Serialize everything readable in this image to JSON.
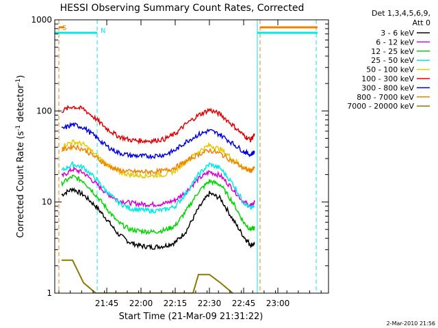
{
  "chart_data": {
    "type": "line",
    "title": "HESSI Observing Summary Count Rates, Corrected",
    "xlabel": "Start Time (21-Mar-09 21:31:22)",
    "ylabel_main": "Corrected Count Rate (s",
    "ylabel_sup1": "-1",
    "ylabel_mid": " detector",
    "ylabel_sup2": "-1",
    "ylabel_end": ")",
    "yscale": "log",
    "ylim": [
      1,
      1000
    ],
    "xlim_minutes": [
      21.37,
      23.37
    ],
    "x_tick_labels": [
      {
        "label": "21:45",
        "minutes": 21.75
      },
      {
        "label": "22:00",
        "minutes": 22.0
      },
      {
        "label": "22:15",
        "minutes": 22.25
      },
      {
        "label": "22:30",
        "minutes": 22.5
      },
      {
        "label": "22:45",
        "minutes": 22.75
      },
      {
        "label": "23:00",
        "minutes": 23.0
      }
    ],
    "y_tick_labels": [
      {
        "label": "1",
        "value": 1
      },
      {
        "label": "10",
        "value": 10
      },
      {
        "label": "100",
        "value": 100
      },
      {
        "label": "1000",
        "value": 1000
      }
    ],
    "legend_header": [
      "Det 1,3,4,5,6,9,",
      "Att 0"
    ],
    "legend_placement": "right",
    "series": [
      {
        "name": "3 - 6 keV",
        "color": "#000000",
        "values": [
          [
            21.42,
            12
          ],
          [
            21.5,
            14
          ],
          [
            21.58,
            12
          ],
          [
            21.67,
            9
          ],
          [
            21.75,
            6.5
          ],
          [
            21.83,
            4.5
          ],
          [
            21.92,
            3.6
          ],
          [
            22.0,
            3.3
          ],
          [
            22.08,
            3.2
          ],
          [
            22.17,
            3.3
          ],
          [
            22.25,
            3.6
          ],
          [
            22.33,
            4.8
          ],
          [
            22.42,
            8.5
          ],
          [
            22.5,
            12.5
          ],
          [
            22.58,
            11
          ],
          [
            22.67,
            6.5
          ],
          [
            22.75,
            4.2
          ],
          [
            22.8,
            3.4
          ],
          [
            22.83,
            3.5
          ]
        ]
      },
      {
        "name": "6 - 12 keV",
        "color": "#d400d4",
        "values": [
          [
            21.42,
            19
          ],
          [
            21.5,
            23
          ],
          [
            21.58,
            21
          ],
          [
            21.67,
            16
          ],
          [
            21.75,
            12.5
          ],
          [
            21.83,
            10.5
          ],
          [
            21.92,
            9.8
          ],
          [
            22.0,
            9.5
          ],
          [
            22.08,
            9.4
          ],
          [
            22.17,
            9.6
          ],
          [
            22.25,
            10.5
          ],
          [
            22.33,
            13
          ],
          [
            22.42,
            18
          ],
          [
            22.5,
            21.5
          ],
          [
            22.58,
            19.5
          ],
          [
            22.67,
            14
          ],
          [
            22.75,
            10
          ],
          [
            22.8,
            9
          ],
          [
            22.83,
            10
          ]
        ]
      },
      {
        "name": "12 - 25 keV",
        "color": "#00d400",
        "values": [
          [
            21.42,
            16
          ],
          [
            21.5,
            19
          ],
          [
            21.58,
            17
          ],
          [
            21.67,
            12
          ],
          [
            21.75,
            8.5
          ],
          [
            21.83,
            6
          ],
          [
            21.92,
            5
          ],
          [
            22.0,
            4.8
          ],
          [
            22.08,
            4.7
          ],
          [
            22.17,
            4.9
          ],
          [
            22.25,
            5.5
          ],
          [
            22.33,
            8
          ],
          [
            22.42,
            13
          ],
          [
            22.5,
            17
          ],
          [
            22.58,
            15.5
          ],
          [
            22.67,
            10
          ],
          [
            22.75,
            6
          ],
          [
            22.8,
            5
          ],
          [
            22.83,
            5.2
          ]
        ]
      },
      {
        "name": "25 - 50 keV",
        "color": "#00e8e8",
        "values": [
          [
            21.42,
            22
          ],
          [
            21.5,
            26
          ],
          [
            21.58,
            24
          ],
          [
            21.67,
            18
          ],
          [
            21.75,
            13
          ],
          [
            21.83,
            10
          ],
          [
            21.92,
            8.5
          ],
          [
            22.0,
            8.2
          ],
          [
            22.08,
            8
          ],
          [
            22.17,
            8.2
          ],
          [
            22.25,
            9
          ],
          [
            22.33,
            12.5
          ],
          [
            22.42,
            20
          ],
          [
            22.5,
            26
          ],
          [
            22.58,
            23.5
          ],
          [
            22.67,
            16
          ],
          [
            22.75,
            10
          ],
          [
            22.8,
            8.5
          ],
          [
            22.83,
            9
          ]
        ]
      },
      {
        "name": "50 - 100 keV",
        "color": "#e6c800",
        "values": [
          [
            21.42,
            41
          ],
          [
            21.5,
            46
          ],
          [
            21.58,
            43
          ],
          [
            21.67,
            33
          ],
          [
            21.75,
            26
          ],
          [
            21.83,
            21.5
          ],
          [
            21.92,
            20
          ],
          [
            22.0,
            19.5
          ],
          [
            22.08,
            19.5
          ],
          [
            22.17,
            20
          ],
          [
            22.25,
            22
          ],
          [
            22.33,
            28
          ],
          [
            22.42,
            36
          ],
          [
            22.5,
            42
          ],
          [
            22.58,
            38
          ],
          [
            22.67,
            30
          ],
          [
            22.75,
            24
          ],
          [
            22.8,
            22
          ],
          [
            22.83,
            24
          ]
        ]
      },
      {
        "name": "100 - 300 keV",
        "color": "#e00000",
        "values": [
          [
            21.42,
            100
          ],
          [
            21.5,
            112
          ],
          [
            21.58,
            105
          ],
          [
            21.67,
            82
          ],
          [
            21.75,
            64
          ],
          [
            21.83,
            53
          ],
          [
            21.92,
            48
          ],
          [
            22.0,
            47
          ],
          [
            22.08,
            47
          ],
          [
            22.17,
            49
          ],
          [
            22.25,
            56
          ],
          [
            22.33,
            72
          ],
          [
            22.42,
            90
          ],
          [
            22.5,
            103
          ],
          [
            22.58,
            92
          ],
          [
            22.67,
            70
          ],
          [
            22.75,
            54
          ],
          [
            22.8,
            48
          ],
          [
            22.83,
            55
          ]
        ]
      },
      {
        "name": "300 - 800 keV",
        "color": "#0000e0",
        "values": [
          [
            21.42,
            63
          ],
          [
            21.5,
            71
          ],
          [
            21.58,
            66
          ],
          [
            21.67,
            52
          ],
          [
            21.75,
            41
          ],
          [
            21.83,
            35
          ],
          [
            21.92,
            32.5
          ],
          [
            22.0,
            32
          ],
          [
            22.08,
            32
          ],
          [
            22.17,
            33
          ],
          [
            22.25,
            37
          ],
          [
            22.33,
            46
          ],
          [
            22.42,
            55
          ],
          [
            22.5,
            61
          ],
          [
            22.58,
            55
          ],
          [
            22.67,
            44
          ],
          [
            22.75,
            36
          ],
          [
            22.8,
            33
          ],
          [
            22.83,
            36
          ]
        ]
      },
      {
        "name": "800 - 7000 keV",
        "color": "#f08000",
        "values": [
          [
            21.42,
            37
          ],
          [
            21.5,
            41
          ],
          [
            21.58,
            38
          ],
          [
            21.67,
            31
          ],
          [
            21.75,
            25.5
          ],
          [
            21.83,
            22.5
          ],
          [
            21.92,
            21.5
          ],
          [
            22.0,
            21.5
          ],
          [
            22.08,
            21.5
          ],
          [
            22.17,
            22
          ],
          [
            22.25,
            24
          ],
          [
            22.33,
            28
          ],
          [
            22.42,
            33.5
          ],
          [
            22.5,
            37
          ],
          [
            22.58,
            34
          ],
          [
            22.67,
            28
          ],
          [
            22.75,
            23.5
          ],
          [
            22.8,
            22
          ],
          [
            22.83,
            23.5
          ]
        ]
      },
      {
        "name": "7000 - 20000 keV",
        "color": "#8c7800",
        "values": [
          [
            21.42,
            2.3
          ],
          [
            21.5,
            2.3
          ],
          [
            21.58,
            1.3
          ],
          [
            21.67,
            1.0
          ],
          [
            22.0,
            1.0
          ],
          [
            22.38,
            1.0
          ],
          [
            22.42,
            1.6
          ],
          [
            22.5,
            1.6
          ],
          [
            22.58,
            1.3
          ],
          [
            22.67,
            1.0
          ]
        ]
      }
    ],
    "annotations": [
      {
        "text": "S",
        "color": "#f08000",
        "minutes": 21.4
      },
      {
        "text": "N",
        "color": "#00e8e8",
        "minutes": 21.68
      }
    ],
    "markers": [
      {
        "color": "#00e8e8",
        "minutes": 21.37
      },
      {
        "color": "#f08000",
        "minutes": 21.4
      },
      {
        "color": "#00e8e8",
        "minutes": 21.68
      },
      {
        "color": "#00e8e8",
        "minutes": 22.85
      },
      {
        "color": "#f08000",
        "minutes": 22.87
      },
      {
        "color": "#00e8e8",
        "minutes": 23.28
      }
    ],
    "footer_date": "2-Mar-2010 21:56"
  }
}
